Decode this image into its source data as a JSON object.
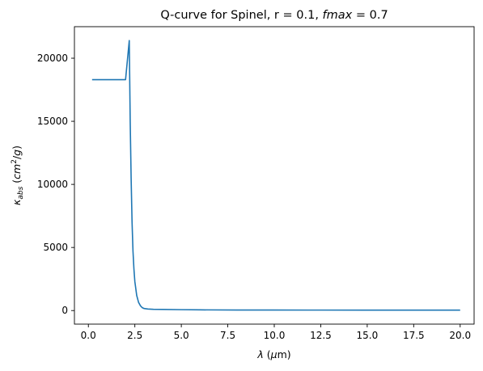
{
  "chart_data": {
    "type": "line",
    "title_parts": [
      "Q-curve for Spinel, r = 0.1, ",
      "fmax",
      " = 0.7"
    ],
    "xlabel_parts": [
      "λ",
      " (",
      "μ",
      "m)"
    ],
    "ylabel_parts": [
      "κ",
      "abs",
      " (",
      "cm",
      "2",
      "/",
      "g",
      ")"
    ],
    "xlim": [
      -0.75,
      20.75
    ],
    "ylim": [
      -1075,
      22500
    ],
    "x_ticks": [
      0.0,
      2.5,
      5.0,
      7.5,
      10.0,
      12.5,
      15.0,
      17.5,
      20.0
    ],
    "x_tick_labels": [
      "0.0",
      "2.5",
      "5.0",
      "7.5",
      "10.0",
      "12.5",
      "15.0",
      "17.5",
      "20.0"
    ],
    "y_ticks": [
      0,
      5000,
      10000,
      15000,
      20000
    ],
    "y_tick_labels": [
      "0",
      "5000",
      "10000",
      "15000",
      "20000"
    ],
    "grid": false,
    "line_color": "#1f77b4",
    "series": [
      {
        "x": [
          0.2,
          2.0,
          2.2,
          2.25,
          2.3,
          2.35,
          2.4,
          2.45,
          2.5,
          2.6,
          2.7,
          2.8,
          2.9,
          3.0,
          3.2,
          3.5,
          4.0,
          5.0,
          6.0,
          8.0,
          10.0,
          12.5,
          15.0,
          17.5,
          20.0
        ],
        "y": [
          18300,
          18300,
          21400,
          15000,
          10500,
          7000,
          4700,
          3300,
          2300,
          1200,
          650,
          380,
          230,
          160,
          120,
          100,
          90,
          70,
          55,
          45,
          40,
          38,
          37,
          36,
          35
        ]
      }
    ]
  }
}
